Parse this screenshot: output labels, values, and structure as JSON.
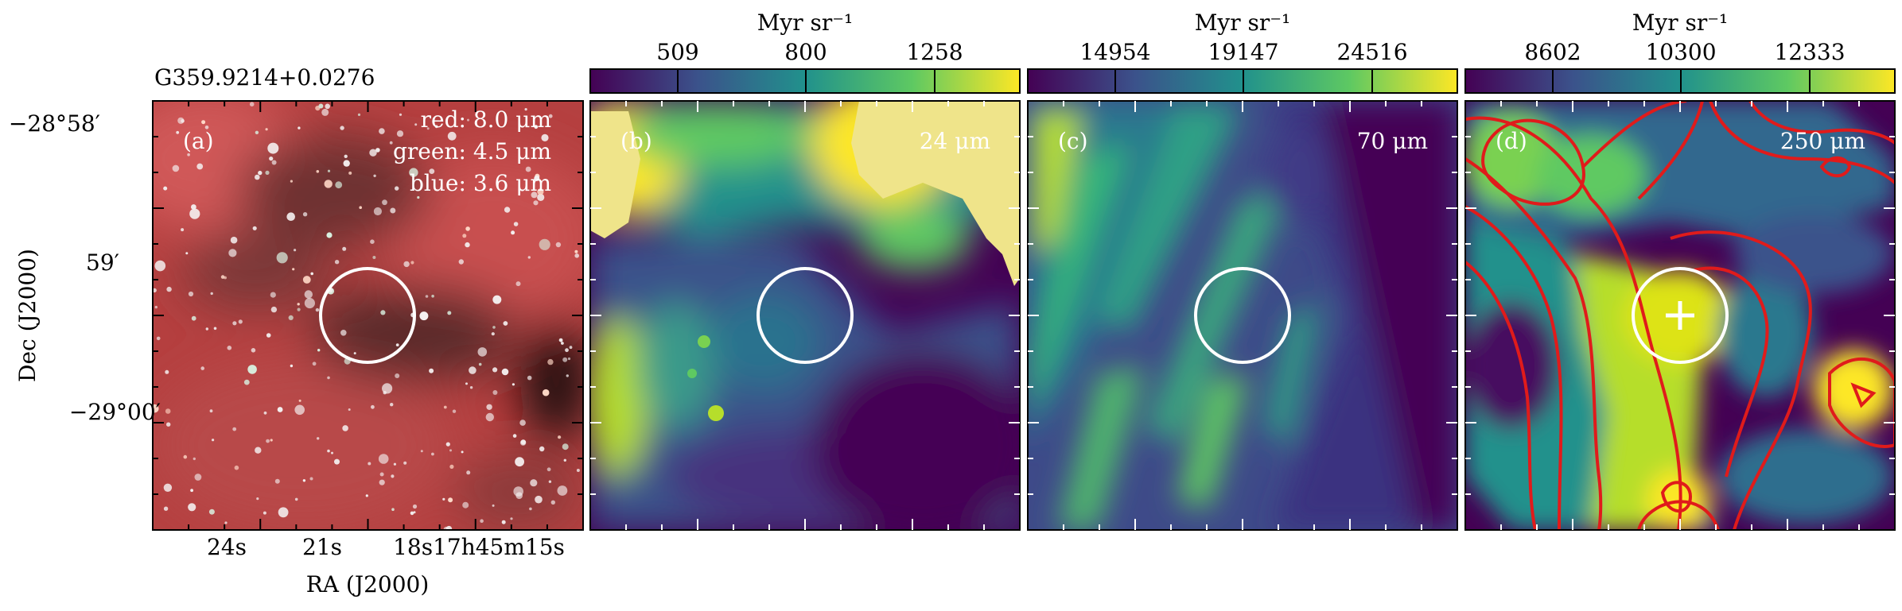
{
  "figure": {
    "source_name": "G359.9214+0.0276",
    "xlabel": "RA (J2000)",
    "ylabel": "Dec (J2000)",
    "ra_ticks": [
      "24s",
      "21s",
      "18s17h45m15s"
    ],
    "dec_ticks": [
      "−28°58′",
      "59′",
      "−29°00′"
    ]
  },
  "panels": [
    {
      "label": "(a)",
      "legend": [
        "red: 8.0 μm",
        "green: 4.5 μm",
        "blue: 3.6 μm"
      ],
      "colors": {
        "red_channel": "#c44040",
        "dark_lane": "#2a1516"
      }
    },
    {
      "label": "(b)",
      "band": "24 μm",
      "colorbar_unit": "Myr sr⁻¹",
      "colorbar_ticks": [
        "509",
        "800",
        "1258"
      ],
      "saturated_color": "#efe48a"
    },
    {
      "label": "(c)",
      "band": "70 μm",
      "colorbar_unit": "Myr sr⁻¹",
      "colorbar_ticks": [
        "14954",
        "19147",
        "24516"
      ]
    },
    {
      "label": "(d)",
      "band": "250 μm",
      "colorbar_unit": "Myr sr⁻¹",
      "colorbar_ticks": [
        "8602",
        "10300",
        "12333"
      ],
      "contour_color": "#e01b1b",
      "marker": "plus"
    }
  ],
  "colormap": [
    "#440154",
    "#3b528b",
    "#21918c",
    "#5ec962",
    "#fde725"
  ],
  "aperture_color": "#ffffff"
}
